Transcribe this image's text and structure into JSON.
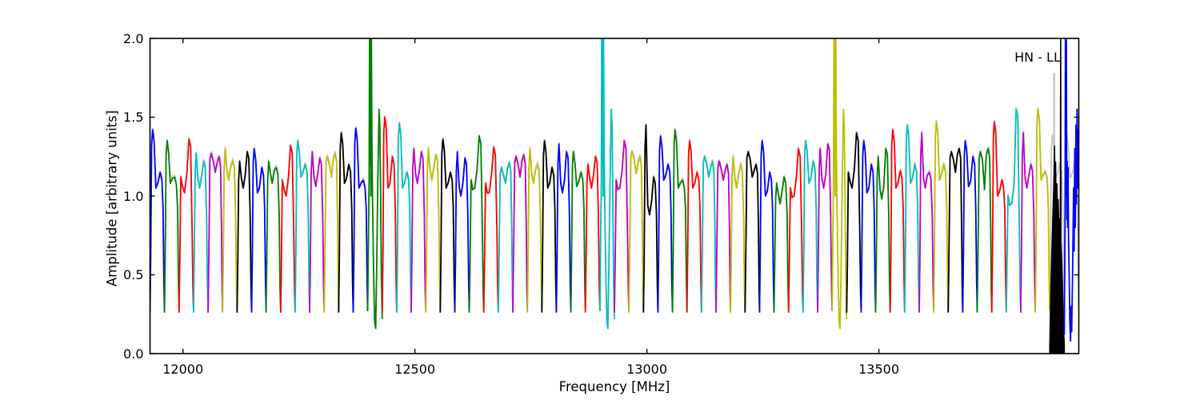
{
  "figure": {
    "background": "#ffffff"
  },
  "chart_data": {
    "type": "line",
    "title": "HN - LL",
    "xlabel": "Frequency [MHz]",
    "ylabel": "Amplitude [arbitrary units]",
    "xlim": [
      11929,
      13931
    ],
    "ylim": [
      0.0,
      2.0
    ],
    "xticks": [
      12000,
      12500,
      13000,
      13500
    ],
    "xtick_labels": [
      "12000",
      "12500",
      "13000",
      "13500"
    ],
    "yticks": [
      0.0,
      0.5,
      1.0,
      1.5,
      2.0
    ],
    "ytick_labels": [
      "0.0",
      "0.5",
      "1.0",
      "1.5",
      "2.0"
    ],
    "grid": false,
    "legend_position": "none",
    "description": "Autocorrelation bandpass spectrum, 64 adjacent ~31.3 MHz sub-bands, matplotlib classic color cycle repeating, gray reference spectrum behind",
    "color_cycle": [
      "#0000ff",
      "#008000",
      "#ff0000",
      "#00bfbf",
      "#bf00bf",
      "#bfbf00",
      "#000000"
    ],
    "reference_color": "#c8c8c8",
    "n_subbands": 64,
    "subband_width_mhz": 31.28,
    "band_min_amplitude": 0.26,
    "bands": [
      [
        0,
        1.42,
        1.05,
        1.15
      ],
      [
        0,
        1.35,
        1.08,
        1.12
      ],
      [
        3,
        1.12,
        1.02,
        1.36
      ],
      [
        1,
        1.27,
        1.05,
        1.22
      ],
      [
        2,
        1.27,
        1.15,
        1.25
      ],
      [
        1,
        1.3,
        1.1,
        1.22
      ],
      [
        1,
        1.22,
        1.05,
        1.28
      ],
      [
        0,
        1.3,
        1.02,
        1.18
      ],
      [
        1,
        1.22,
        1.08,
        1.18
      ],
      [
        3,
        1.1,
        1.0,
        1.32
      ],
      [
        0,
        1.35,
        1.12,
        1.2
      ],
      [
        1,
        1.28,
        1.06,
        1.24
      ],
      [
        2,
        1.25,
        1.12,
        1.27
      ],
      [
        0,
        1.4,
        1.08,
        1.2
      ],
      [
        0,
        1.43,
        1.05,
        1.1
      ],
      null,
      [
        0,
        1.5,
        1.05,
        1.25
      ],
      [
        0,
        1.46,
        1.05,
        1.15
      ],
      [
        1,
        1.3,
        1.08,
        1.28
      ],
      [
        1,
        1.3,
        1.1,
        1.26
      ],
      [
        0,
        1.36,
        1.05,
        1.15
      ],
      [
        1,
        1.28,
        1.0,
        1.24
      ],
      [
        3,
        1.1,
        1.05,
        1.38
      ],
      [
        3,
        1.08,
        1.02,
        1.31
      ],
      [
        2,
        1.18,
        1.08,
        1.21
      ],
      [
        2,
        1.25,
        1.12,
        1.26
      ],
      [
        1,
        1.3,
        1.08,
        1.2
      ],
      [
        0,
        1.35,
        1.05,
        1.18
      ],
      [
        1,
        1.33,
        1.02,
        1.28
      ],
      [
        0,
        1.28,
        1.06,
        1.15
      ],
      [
        1,
        1.2,
        1.05,
        1.25
      ],
      null,
      [
        3,
        1.1,
        1.05,
        1.35
      ],
      [
        2,
        1.28,
        1.14,
        1.25
      ],
      [
        1,
        1.45,
        0.88,
        1.12
      ],
      [
        0,
        1.38,
        1.1,
        1.2
      ],
      [
        0,
        1.42,
        1.05,
        1.1
      ],
      [
        0,
        1.35,
        1.05,
        1.15
      ],
      [
        2,
        1.25,
        1.12,
        1.22
      ],
      [
        2,
        1.22,
        1.1,
        1.2
      ],
      [
        1,
        1.25,
        1.05,
        1.2
      ],
      [
        2,
        1.28,
        1.12,
        1.2
      ],
      [
        0,
        1.35,
        1.0,
        1.15
      ],
      [
        1,
        1.08,
        0.95,
        1.12
      ],
      [
        3,
        1.05,
        1.0,
        1.3
      ],
      [
        0,
        1.35,
        1.08,
        1.22
      ],
      [
        1,
        1.3,
        1.05,
        1.33
      ],
      null,
      [
        3,
        1.15,
        1.05,
        1.4
      ],
      [
        0,
        1.35,
        1.02,
        1.2
      ],
      [
        1,
        1.25,
        0.98,
        1.3
      ],
      [
        0,
        1.42,
        1.05,
        1.16
      ],
      [
        0,
        1.45,
        1.08,
        1.2
      ],
      [
        1,
        1.4,
        1.05,
        1.15
      ],
      [
        0,
        1.47,
        1.1,
        1.2
      ],
      [
        2,
        1.28,
        1.15,
        1.3
      ],
      [
        0,
        1.35,
        1.06,
        1.25
      ],
      [
        2,
        1.28,
        1.04,
        1.3
      ],
      [
        0,
        1.47,
        1.0,
        1.1
      ],
      [
        3,
        1.0,
        0.95,
        1.55
      ],
      [
        1,
        1.4,
        1.05,
        1.2
      ],
      [
        0,
        1.55,
        1.1,
        1.15
      ],
      null,
      null
    ],
    "spike_bands": {
      "indices": [
        15,
        31,
        47
      ],
      "spike_freq_mhz": [
        12403,
        12903,
        13404
      ],
      "spike_amplitude": "clipped above 2.0",
      "dip_min": 0.16,
      "secondary_peak": 1.55,
      "shape": [
        [
          0,
          0.27
        ],
        [
          0.06,
          0.8
        ],
        [
          0.1,
          1.1
        ],
        [
          0.13,
          2.12
        ],
        [
          0.16,
          1.2
        ],
        [
          0.19,
          2.12
        ],
        [
          0.22,
          1.0
        ],
        [
          0.25,
          2.12
        ],
        [
          0.29,
          1.35
        ],
        [
          0.33,
          1.0
        ],
        [
          0.4,
          0.55
        ],
        [
          0.48,
          0.2
        ],
        [
          0.55,
          0.16
        ],
        [
          0.62,
          0.55
        ],
        [
          0.7,
          1.1
        ],
        [
          0.78,
          1.55
        ],
        [
          0.84,
          1.45
        ],
        [
          0.89,
          1.0
        ],
        [
          0.94,
          0.5
        ],
        [
          1,
          0.22
        ]
      ]
    },
    "black_filled_band": {
      "index": 62,
      "top_profile": [
        [
          0,
          0.04
        ],
        [
          0.07,
          0.4
        ],
        [
          0.16,
          0.7
        ],
        [
          0.25,
          1.0
        ],
        [
          0.3,
          1.15
        ],
        [
          0.33,
          1.32
        ],
        [
          0.36,
          1.05
        ],
        [
          0.4,
          1.22
        ],
        [
          0.44,
          0.95
        ],
        [
          0.49,
          1.08
        ],
        [
          0.54,
          0.9
        ],
        [
          0.58,
          0.98
        ],
        [
          0.63,
          0.8
        ],
        [
          0.67,
          0.86
        ],
        [
          0.72,
          0.72
        ],
        [
          0.755,
          2.12
        ],
        [
          0.77,
          0.72
        ],
        [
          0.82,
          0.6
        ],
        [
          0.88,
          0.42
        ],
        [
          0.94,
          0.18
        ],
        [
          1,
          0.05
        ]
      ]
    },
    "blue_noisy_band": {
      "index": 63,
      "shape": [
        [
          0,
          0.12
        ],
        [
          0.03,
          0.55
        ],
        [
          0.06,
          1.0
        ],
        [
          0.08,
          2.12
        ],
        [
          0.1,
          1.0
        ],
        [
          0.12,
          2.12
        ],
        [
          0.14,
          2.12
        ],
        [
          0.16,
          1.25
        ],
        [
          0.18,
          0.85
        ],
        [
          0.2,
          1.22
        ],
        [
          0.23,
          0.8
        ],
        [
          0.26,
          1.18
        ],
        [
          0.29,
          0.75
        ],
        [
          0.33,
          0.55
        ],
        [
          0.38,
          0.2
        ],
        [
          0.43,
          0.08
        ],
        [
          0.47,
          0.3
        ],
        [
          0.51,
          0.14
        ],
        [
          0.57,
          0.5
        ],
        [
          0.64,
          1.05
        ],
        [
          0.68,
          0.65
        ],
        [
          0.72,
          1.3
        ],
        [
          0.76,
          0.8
        ],
        [
          0.8,
          1.45
        ],
        [
          0.84,
          0.95
        ],
        [
          0.88,
          1.55
        ],
        [
          0.92,
          1.05
        ],
        [
          0.96,
          1.42
        ],
        [
          1,
          1.25
        ]
      ]
    },
    "gray_reference": {
      "offset_amplitude": 0.012,
      "tall_line_freq_mhz": 13878,
      "tall_line_top": 1.78,
      "default_band": [
        0,
        1.38,
        1.1,
        1.2
      ]
    }
  }
}
